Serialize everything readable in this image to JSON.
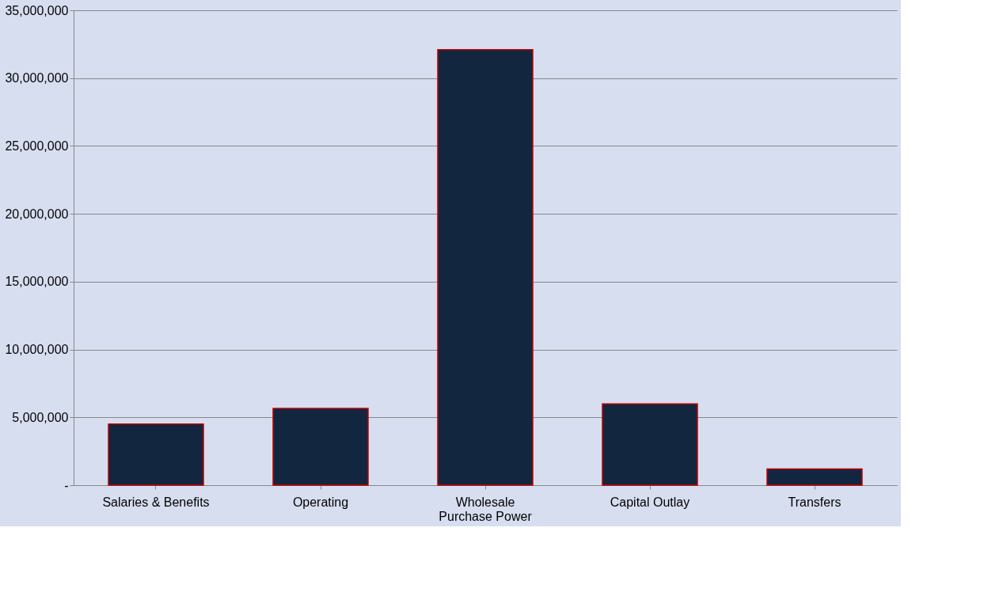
{
  "chart_data": {
    "type": "bar",
    "categories": [
      "Salaries & Benefits",
      "Operating",
      "Wholesale Purchase Power",
      "Capital Outlay",
      "Transfers"
    ],
    "values": [
      4500000,
      5660000,
      32100000,
      6000000,
      1190000
    ],
    "color": "#12263f",
    "ylim": [
      0,
      35000000
    ],
    "yticks": [
      {
        "value": 0,
        "label": "-"
      },
      {
        "value": 5000000,
        "label": "5,000,000"
      },
      {
        "value": 10000000,
        "label": "10,000,000"
      },
      {
        "value": 15000000,
        "label": "15,000,000"
      },
      {
        "value": 20000000,
        "label": "20,000,000"
      },
      {
        "value": 25000000,
        "label": "25,000,000"
      },
      {
        "value": 30000000,
        "label": "30,000,000"
      },
      {
        "value": 35000000,
        "label": "35,000,000"
      }
    ],
    "grid": "y"
  }
}
